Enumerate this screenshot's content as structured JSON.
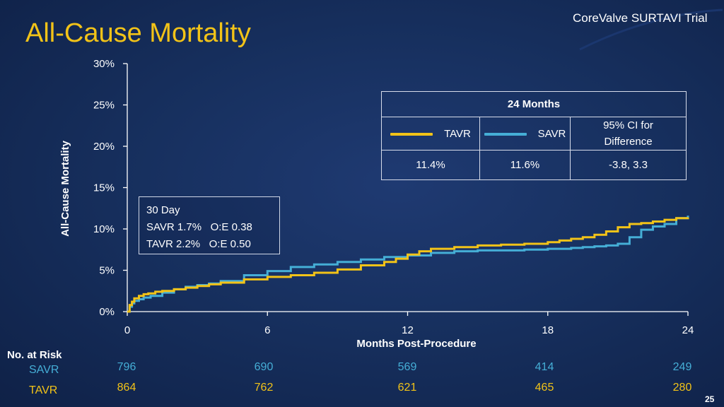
{
  "title": "All-Cause Mortality",
  "brand": "CoreValve SURTAVI Trial",
  "page_number": "25",
  "colors": {
    "tavr": "#f2c318",
    "savr": "#45aed6",
    "title": "#f2c318",
    "background": "#17305f"
  },
  "inset": {
    "heading": "30 Day",
    "line1": "SAVR 1.7%   O:E 0.38",
    "line2": "TAVR 2.2%   O:E 0.50"
  },
  "table": {
    "header": "24 Months",
    "tavr_label": "TAVR",
    "savr_label": "SAVR",
    "ci_label_line1": "95% CI for",
    "ci_label_line2": "Difference",
    "tavr_value": "11.4%",
    "savr_value": "11.6%",
    "ci_value": "-3.8, 3.3"
  },
  "risk_table": {
    "title": "No. at Risk",
    "rows": [
      {
        "label": "SAVR",
        "color": "#45aed6",
        "values": [
          "796",
          "690",
          "569",
          "414",
          "249"
        ]
      },
      {
        "label": "TAVR",
        "color": "#f2c318",
        "values": [
          "864",
          "762",
          "621",
          "465",
          "280"
        ]
      }
    ]
  },
  "chart_data": {
    "type": "line",
    "title": "All-Cause Mortality",
    "xlabel": "Months Post-Procedure",
    "ylabel": "All-Cause Mortality",
    "xlim": [
      0,
      24
    ],
    "ylim": [
      0,
      30
    ],
    "xticks": [
      "0",
      "6",
      "12",
      "18",
      "24"
    ],
    "yticks": [
      "0%",
      "5%",
      "10%",
      "15%",
      "20%",
      "25%",
      "30%"
    ],
    "grid": false,
    "series": [
      {
        "name": "TAVR",
        "color": "#f2c318",
        "step": true,
        "x": [
          0,
          0.1,
          0.2,
          0.3,
          0.5,
          0.7,
          0.9,
          1.2,
          1.5,
          2,
          2.5,
          3,
          3.5,
          4,
          5,
          6,
          7,
          8,
          9,
          10,
          11,
          11.5,
          12,
          12.5,
          13,
          14,
          15,
          16,
          17,
          18,
          18.5,
          19,
          19.5,
          20,
          20.5,
          21,
          21.5,
          22,
          22.5,
          23,
          23.5,
          24
        ],
        "y": [
          0,
          0.8,
          1.2,
          1.6,
          1.9,
          2.1,
          2.2,
          2.4,
          2.5,
          2.7,
          2.9,
          3.1,
          3.3,
          3.5,
          3.9,
          4.2,
          4.4,
          4.7,
          5.1,
          5.6,
          6.0,
          6.4,
          6.9,
          7.3,
          7.6,
          7.8,
          8.0,
          8.1,
          8.2,
          8.4,
          8.6,
          8.8,
          9.0,
          9.3,
          9.7,
          10.2,
          10.6,
          10.7,
          10.9,
          11.1,
          11.3,
          11.4
        ]
      },
      {
        "name": "SAVR",
        "color": "#45aed6",
        "step": true,
        "x": [
          0,
          0.1,
          0.2,
          0.3,
          0.5,
          0.7,
          1,
          1.5,
          2,
          2.5,
          3,
          3.5,
          4,
          5,
          6,
          7,
          8,
          9,
          10,
          11,
          12,
          13,
          14,
          15,
          16,
          17,
          18,
          19,
          19.5,
          20,
          20.5,
          21,
          21.5,
          22,
          22.5,
          23,
          23.5,
          24
        ],
        "y": [
          0,
          0.6,
          1.0,
          1.3,
          1.5,
          1.7,
          1.9,
          2.3,
          2.7,
          3.0,
          3.2,
          3.4,
          3.7,
          4.4,
          4.9,
          5.4,
          5.7,
          6.0,
          6.3,
          6.6,
          6.8,
          7.1,
          7.3,
          7.4,
          7.4,
          7.5,
          7.6,
          7.7,
          7.8,
          7.9,
          8.0,
          8.2,
          9.0,
          9.9,
          10.3,
          10.6,
          11.3,
          11.6
        ]
      }
    ]
  }
}
